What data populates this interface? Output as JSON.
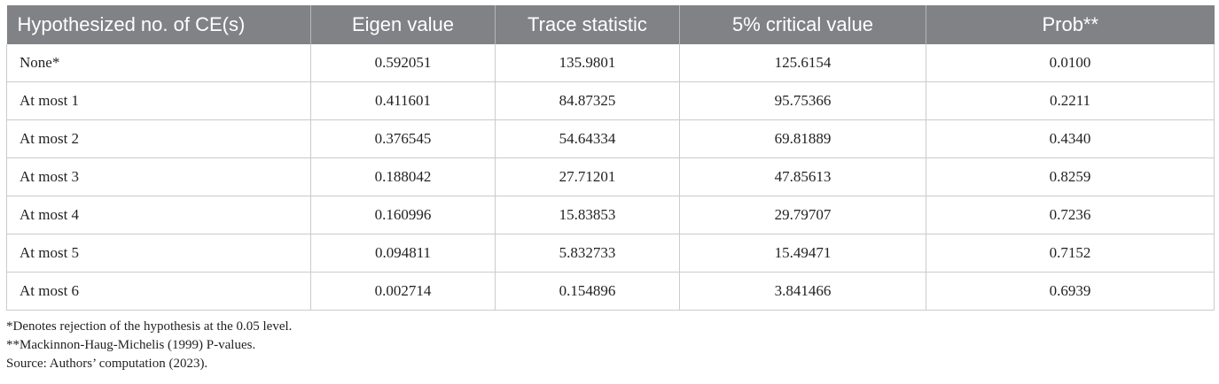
{
  "table": {
    "headers": [
      "Hypothesized no. of CE(s)",
      "Eigen value",
      "Trace statistic",
      "5% critical value",
      "Prob**"
    ],
    "rows": [
      [
        "None*",
        "0.592051",
        "135.9801",
        "125.6154",
        "0.0100"
      ],
      [
        "At most 1",
        "0.411601",
        "84.87325",
        "95.75366",
        "0.2211"
      ],
      [
        "At most 2",
        "0.376545",
        "54.64334",
        "69.81889",
        "0.4340"
      ],
      [
        "At most 3",
        "0.188042",
        "27.71201",
        "47.85613",
        "0.8259"
      ],
      [
        "At most 4",
        "0.160996",
        "15.83853",
        "29.79707",
        "0.7236"
      ],
      [
        "At most 5",
        "0.094811",
        "5.832733",
        "15.49471",
        "0.7152"
      ],
      [
        "At most 6",
        "0.002714",
        "0.154896",
        "3.841466",
        "0.6939"
      ]
    ]
  },
  "footnotes": [
    "*Denotes rejection of the hypothesis at the 0.05 level.",
    "**Mackinnon-Haug-Michelis (1999) P-values.",
    "Source: Authors’ computation (2023)."
  ],
  "colors": {
    "header_background": "#808285",
    "header_text": "#ffffff",
    "grid_lines": "#c9cbcd",
    "body_text": "#231f20"
  }
}
